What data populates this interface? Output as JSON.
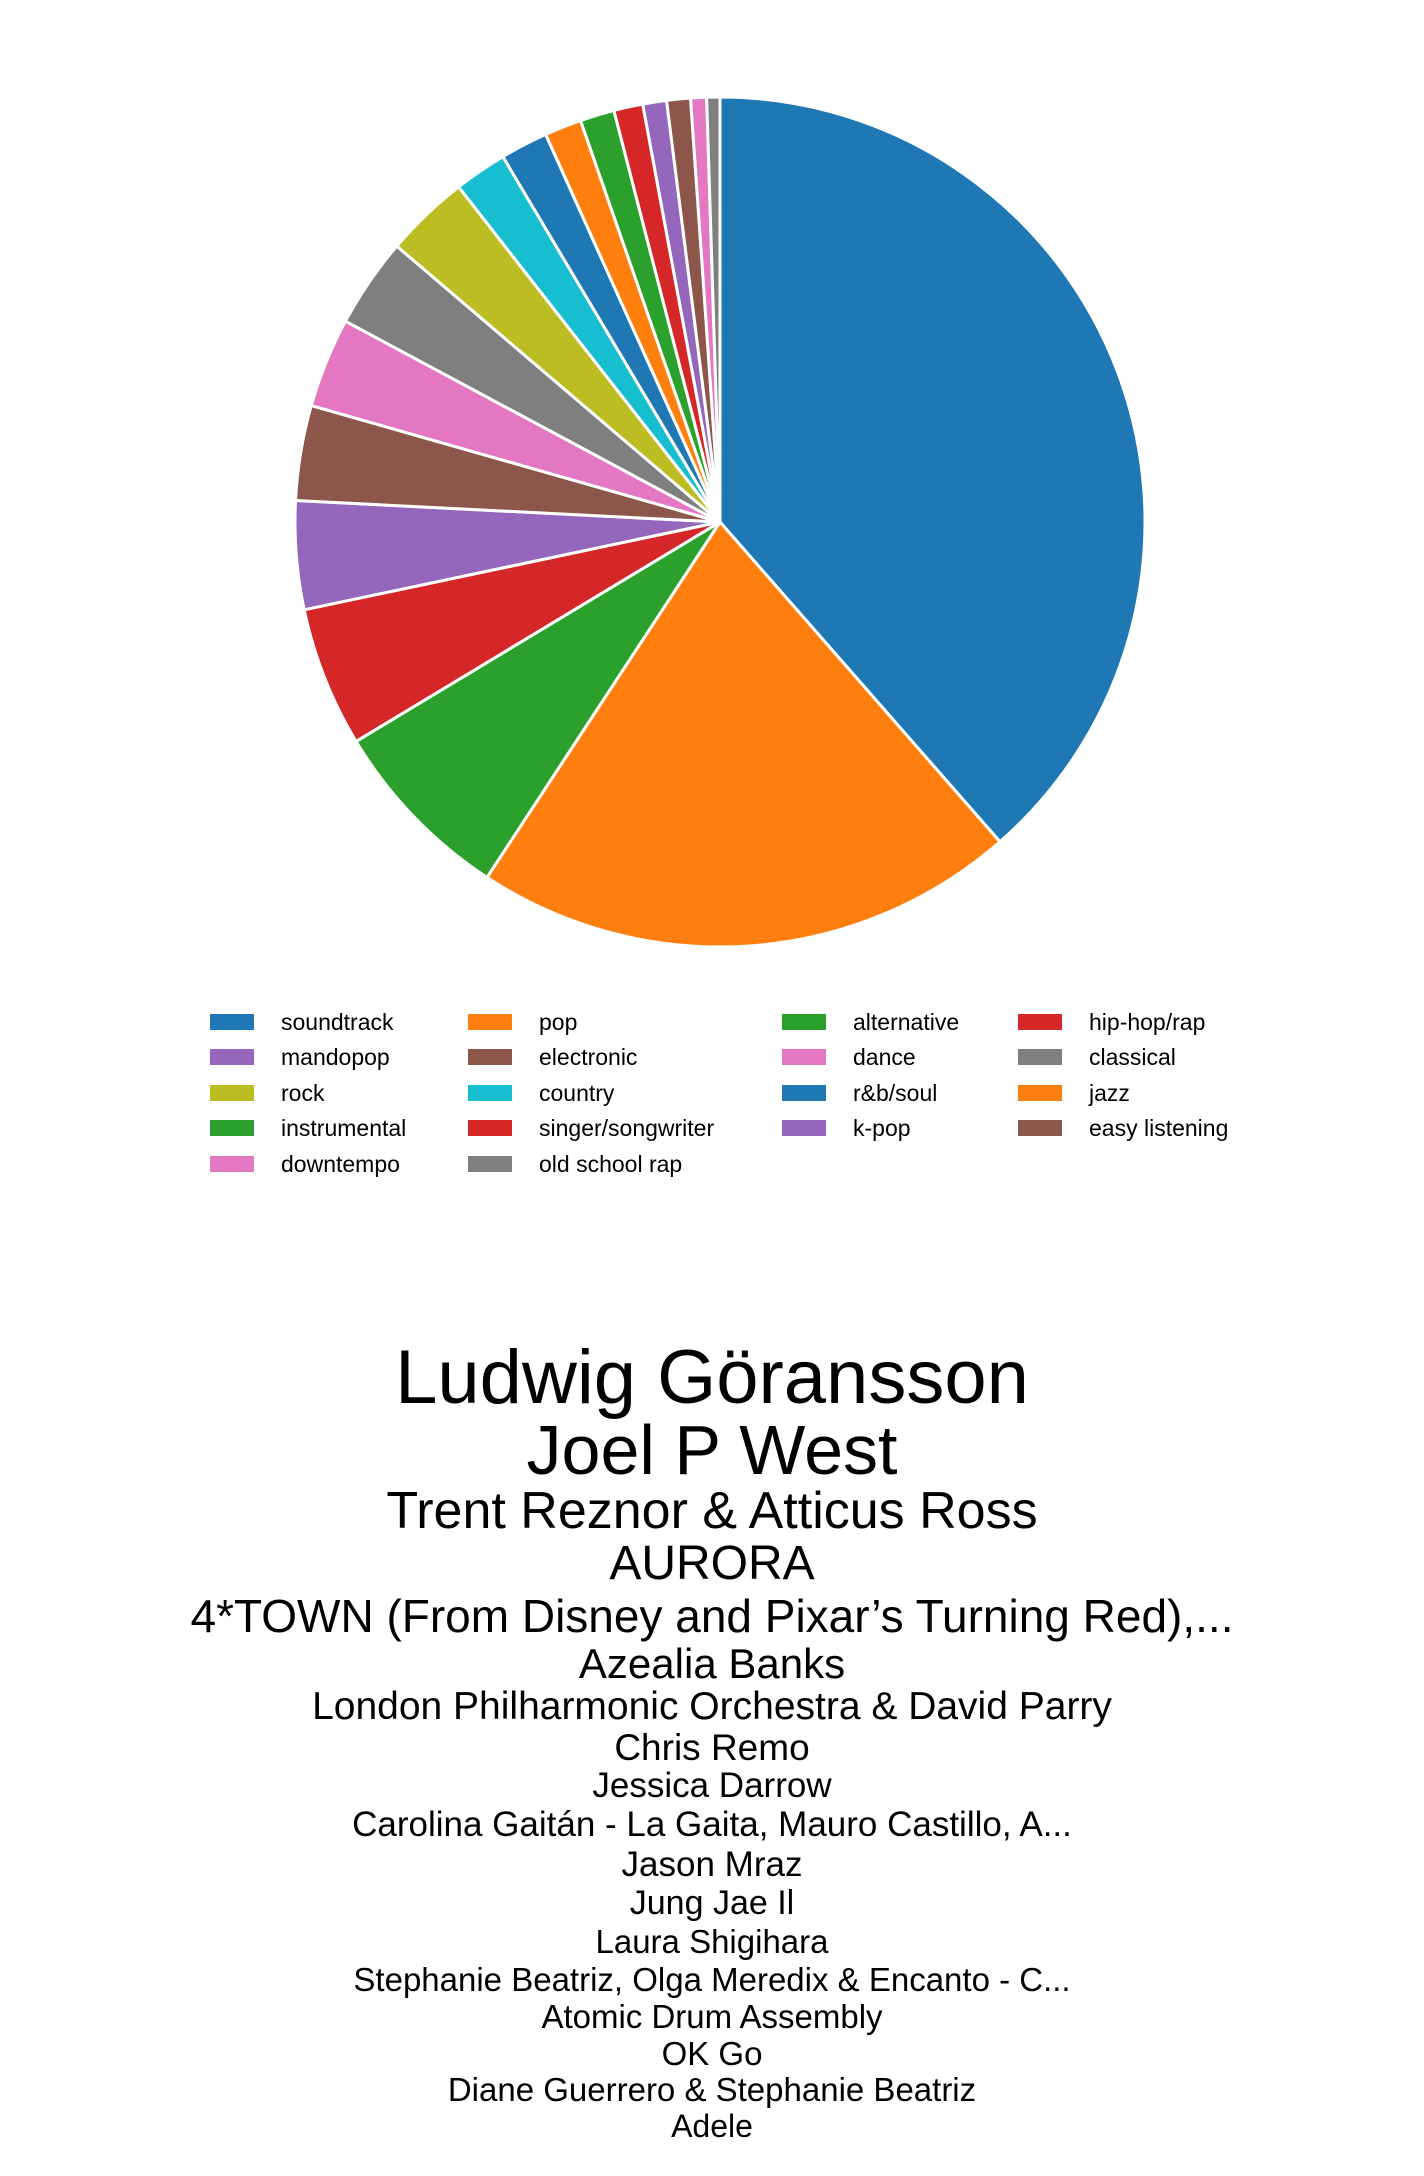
{
  "chart_data": {
    "type": "pie",
    "start_angle_deg": 90,
    "direction": "clockwise",
    "slices": [
      {
        "label": "soundtrack",
        "value": 38.4,
        "color": "#1f77b4"
      },
      {
        "label": "pop",
        "value": 20.6,
        "color": "#ff7f0e"
      },
      {
        "label": "alternative",
        "value": 7.1,
        "color": "#2ca02c"
      },
      {
        "label": "hip-hop/rap",
        "value": 5.3,
        "color": "#d62728"
      },
      {
        "label": "mandopop",
        "value": 4.1,
        "color": "#9467bd"
      },
      {
        "label": "electronic",
        "value": 3.6,
        "color": "#8c564b"
      },
      {
        "label": "dance",
        "value": 3.4,
        "color": "#e377c2"
      },
      {
        "label": "classical",
        "value": 3.4,
        "color": "#7f7f7f"
      },
      {
        "label": "rock",
        "value": 3.2,
        "color": "#bcbd22"
      },
      {
        "label": "country",
        "value": 2.0,
        "color": "#17becf"
      },
      {
        "label": "r&b/soul",
        "value": 1.8,
        "color": "#1f77b4"
      },
      {
        "label": "jazz",
        "value": 1.4,
        "color": "#ff7f0e"
      },
      {
        "label": "instrumental",
        "value": 1.3,
        "color": "#2ca02c"
      },
      {
        "label": "singer/songwriter",
        "value": 1.1,
        "color": "#d62728"
      },
      {
        "label": "k-pop",
        "value": 0.9,
        "color": "#9467bd"
      },
      {
        "label": "easy listening",
        "value": 0.9,
        "color": "#8c564b"
      },
      {
        "label": "downtempo",
        "value": 0.6,
        "color": "#e377c2"
      },
      {
        "label": "old school rap",
        "value": 0.5,
        "color": "#7f7f7f"
      }
    ],
    "legend_placement": "below",
    "legend_columns": 4
  },
  "artists": [
    "Ludwig Göransson",
    "Joel P West",
    "Trent Reznor & Atticus Ross",
    "AURORA",
    "4*TOWN (From Disney and Pixar’s Turning Red),...",
    "Azealia Banks",
    "London Philharmonic Orchestra & David Parry",
    "Chris Remo",
    "Jessica Darrow",
    "Carolina Gaitán - La Gaita, Mauro Castillo, A...",
    "Jason Mraz",
    "Jung Jae Il",
    "Laura Shigihara",
    "Stephanie Beatriz, Olga Meredix & Encanto - C...",
    "Atomic Drum Assembly",
    "OK Go",
    "Diane Guerrero & Stephanie Beatriz",
    "Adele"
  ]
}
